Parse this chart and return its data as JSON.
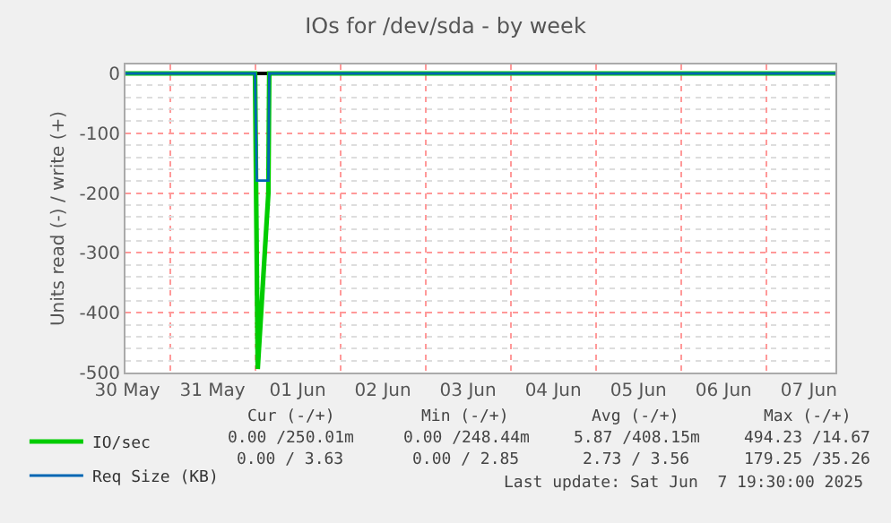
{
  "chart_data": {
    "type": "line",
    "title": "IOs for /dev/sda - by week",
    "ylabel": "Units read (-) / write (+)",
    "xlim": [
      "2025-05-30T11:30",
      "2025-06-07T19:30"
    ],
    "ylim": [
      -500,
      15
    ],
    "xticks": [
      {
        "value": "2025-05-30T12:00",
        "label": "30 May"
      },
      {
        "value": "2025-05-31T12:00",
        "label": "31 May"
      },
      {
        "value": "2025-06-01T12:00",
        "label": "01 Jun"
      },
      {
        "value": "2025-06-02T12:00",
        "label": "02 Jun"
      },
      {
        "value": "2025-06-03T12:00",
        "label": "03 Jun"
      },
      {
        "value": "2025-06-04T12:00",
        "label": "04 Jun"
      },
      {
        "value": "2025-06-05T12:00",
        "label": "05 Jun"
      },
      {
        "value": "2025-06-06T12:00",
        "label": "06 Jun"
      },
      {
        "value": "2025-06-07T12:00",
        "label": "07 Jun"
      }
    ],
    "yticks": [
      -500,
      -400,
      -300,
      -200,
      -100,
      0
    ],
    "grid": true,
    "legend": "bottom left",
    "marker": "none",
    "line_style": "solid",
    "series": [
      {
        "name": "IO/sec",
        "color": "#00cc00",
        "x": [
          "2025-05-30T11:30",
          "2025-06-01T00:00",
          "2025-06-01T00:45",
          "2025-06-01T03:45",
          "2025-06-01T04:00",
          "2025-06-07T19:30"
        ],
        "values": [
          0,
          0,
          -494,
          -200,
          0,
          0
        ]
      },
      {
        "name": "Req Size (KB)",
        "color": "#0066b3",
        "x": [
          "2025-05-30T11:30",
          "2025-06-01T00:00",
          "2025-06-01T00:30",
          "2025-06-01T03:45",
          "2025-06-01T04:00",
          "2025-06-07T19:30"
        ],
        "values": [
          0,
          0,
          -179,
          -179,
          0,
          0
        ]
      }
    ],
    "annotations": [
      "Cur (-/+)",
      "Min (-/+)",
      "Avg (-/+)",
      "Max (-/+)",
      "0.00 /250.01m",
      "0.00 /248.44m",
      "5.87 /408.15m",
      "494.23 /14.67",
      "0.00 / 3.63",
      "0.00 / 2.85",
      "2.73 / 3.56",
      "179.25 /35.26",
      "Last update: Sat Jun  7 19:30:00 2025"
    ]
  }
}
